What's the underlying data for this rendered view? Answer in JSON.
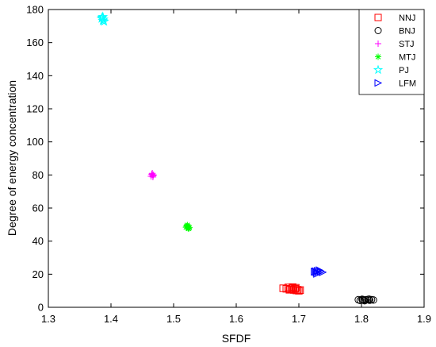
{
  "chart_data": {
    "type": "scatter",
    "title": "",
    "xlabel": "SFDF",
    "ylabel": "Degree of energy concentration",
    "xlim": [
      1.3,
      1.9
    ],
    "ylim": [
      0,
      180
    ],
    "xticks": [
      "1.3",
      "1.4",
      "1.5",
      "1.6",
      "1.7",
      "1.8",
      "1.9"
    ],
    "yticks": [
      "0",
      "20",
      "40",
      "60",
      "80",
      "100",
      "120",
      "140",
      "160",
      "180"
    ],
    "grid": false,
    "legend_position": "top-right",
    "series": [
      {
        "name": "NNJ",
        "marker": "square",
        "color": "#ff0000",
        "points": [
          [
            1.675,
            11.5
          ],
          [
            1.68,
            11.2
          ],
          [
            1.683,
            12.0
          ],
          [
            1.686,
            11.0
          ],
          [
            1.688,
            10.8
          ],
          [
            1.69,
            11.6
          ],
          [
            1.692,
            10.5
          ],
          [
            1.694,
            11.2
          ],
          [
            1.696,
            10.2
          ],
          [
            1.698,
            10.6
          ],
          [
            1.7,
            10.0
          ],
          [
            1.702,
            10.4
          ],
          [
            1.69,
            12.2
          ],
          [
            1.685,
            10.6
          ],
          [
            1.695,
            11.8
          ]
        ]
      },
      {
        "name": "BNJ",
        "marker": "circle",
        "color": "#000000",
        "points": [
          [
            1.795,
            4.6
          ],
          [
            1.798,
            4.2
          ],
          [
            1.801,
            4.8
          ],
          [
            1.804,
            4.4
          ],
          [
            1.807,
            4.5
          ],
          [
            1.81,
            4.7
          ],
          [
            1.813,
            4.3
          ],
          [
            1.816,
            4.6
          ],
          [
            1.819,
            4.4
          ],
          [
            1.805,
            4.0
          ],
          [
            1.812,
            4.9
          ],
          [
            1.802,
            4.5
          ]
        ]
      },
      {
        "name": "STJ",
        "marker": "plus",
        "color": "#ff00ff",
        "points": [
          [
            1.465,
            80.5
          ],
          [
            1.467,
            79.5
          ],
          [
            1.466,
            81.0
          ],
          [
            1.468,
            80.0
          ],
          [
            1.464,
            79.2
          ],
          [
            1.467,
            78.8
          ],
          [
            1.466,
            80.2
          ]
        ]
      },
      {
        "name": "MTJ",
        "marker": "asterisk",
        "color": "#00ff00",
        "points": [
          [
            1.521,
            49.0
          ],
          [
            1.523,
            48.0
          ],
          [
            1.522,
            49.6
          ],
          [
            1.524,
            47.6
          ],
          [
            1.52,
            48.4
          ],
          [
            1.523,
            48.8
          ],
          [
            1.525,
            48.2
          ]
        ]
      },
      {
        "name": "PJ",
        "marker": "star",
        "color": "#00ffff",
        "points": [
          [
            1.386,
            175.2
          ],
          [
            1.388,
            174.0
          ],
          [
            1.387,
            173.2
          ],
          [
            1.385,
            174.6
          ],
          [
            1.389,
            172.8
          ],
          [
            1.387,
            175.6
          ]
        ]
      },
      {
        "name": "LFM",
        "marker": "triangle-right",
        "color": "#0000ff",
        "points": [
          [
            1.725,
            21.5
          ],
          [
            1.728,
            21.0
          ],
          [
            1.73,
            22.0
          ],
          [
            1.732,
            20.8
          ],
          [
            1.735,
            21.6
          ],
          [
            1.738,
            21.2
          ],
          [
            1.729,
            20.2
          ],
          [
            1.733,
            22.4
          ],
          [
            1.727,
            21.8
          ]
        ]
      }
    ]
  }
}
